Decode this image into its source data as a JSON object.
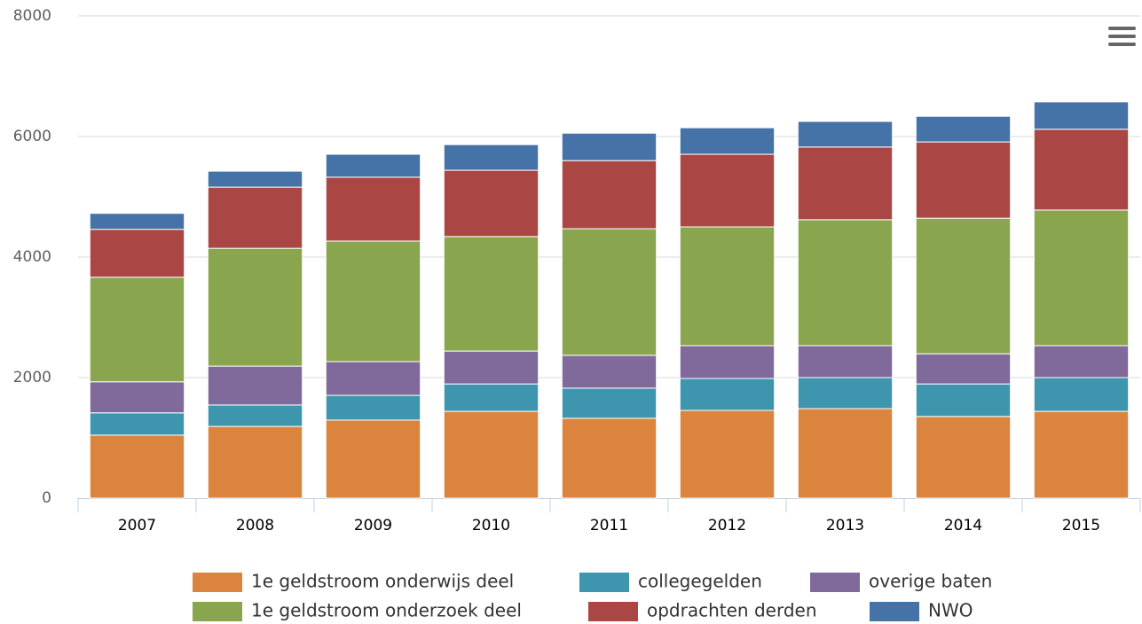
{
  "chart_data": {
    "type": "stacked_bar",
    "categories": [
      "2007",
      "2008",
      "2009",
      "2010",
      "2011",
      "2012",
      "2013",
      "2014",
      "2015"
    ],
    "series": [
      {
        "name": "1e geldstroom onderwijs deel",
        "color": "#db843d",
        "values": [
          1045,
          1190,
          1295,
          1440,
          1325,
          1455,
          1485,
          1355,
          1440
        ]
      },
      {
        "name": "collegegelden",
        "color": "#3d96ae",
        "values": [
          370,
          355,
          410,
          455,
          500,
          530,
          515,
          540,
          560
        ]
      },
      {
        "name": "overige baten",
        "color": "#80699b",
        "values": [
          515,
          645,
          560,
          545,
          545,
          545,
          530,
          500,
          530
        ]
      },
      {
        "name": "1e geldstroom onderzoek deel",
        "color": "#89a54e",
        "values": [
          1735,
          1955,
          2000,
          1900,
          2100,
          1970,
          2090,
          2250,
          2250
        ]
      },
      {
        "name": "opdrachten derden",
        "color": "#aa4643",
        "values": [
          795,
          1015,
          1060,
          1100,
          1130,
          1205,
          1205,
          1265,
          1340
        ]
      },
      {
        "name": "NWO",
        "color": "#4572a7",
        "values": [
          265,
          265,
          380,
          425,
          455,
          440,
          425,
          425,
          455
        ]
      }
    ],
    "ylim": [
      0,
      8000
    ],
    "yticks": [
      0,
      2000,
      4000,
      6000,
      8000
    ],
    "grid": true
  }
}
